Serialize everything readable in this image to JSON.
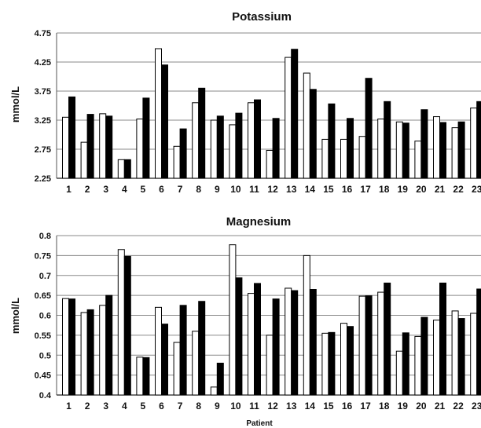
{
  "chart_data": [
    {
      "type": "bar",
      "title": "Potassium",
      "ylabel": "mmol/L",
      "xlabel": "",
      "ylim": [
        2.25,
        4.75
      ],
      "yticks": [
        "2.25",
        "2.75",
        "3.25",
        "3.75",
        "4.25",
        "4.75"
      ],
      "grid": true,
      "categories": [
        "1",
        "2",
        "3",
        "4",
        "5",
        "6",
        "7",
        "8",
        "9",
        "10",
        "11",
        "12",
        "13",
        "14",
        "15",
        "16",
        "17",
        "18",
        "19",
        "20",
        "21",
        "22",
        "23"
      ],
      "series": [
        {
          "fill": "#ffffff",
          "values": [
            3.3,
            2.87,
            3.36,
            2.57,
            3.27,
            4.48,
            2.8,
            3.55,
            3.25,
            3.17,
            3.55,
            2.73,
            4.33,
            4.06,
            2.92,
            2.92,
            2.97,
            3.27,
            3.22,
            2.89,
            3.31,
            3.12,
            3.46
          ]
        },
        {
          "fill": "#000000",
          "values": [
            3.65,
            3.35,
            3.32,
            2.57,
            3.63,
            4.2,
            3.1,
            3.8,
            3.32,
            3.37,
            3.6,
            3.28,
            4.47,
            3.78,
            3.53,
            3.28,
            3.97,
            3.57,
            3.2,
            3.43,
            3.21,
            3.22,
            3.57
          ]
        }
      ]
    },
    {
      "type": "bar",
      "title": "Magnesium",
      "ylabel": "mmol/L",
      "xlabel": "Patient",
      "ylim": [
        0.4,
        0.8
      ],
      "yticks": [
        "0.4",
        "0.45",
        "0.5",
        "0.55",
        "0.6",
        "0.65",
        "0.7",
        "0.75",
        "0.8"
      ],
      "grid": true,
      "categories": [
        "1",
        "2",
        "3",
        "4",
        "5",
        "6",
        "7",
        "8",
        "9",
        "10",
        "11",
        "12",
        "13",
        "14",
        "15",
        "16",
        "17",
        "18",
        "19",
        "20",
        "21",
        "22",
        "23"
      ],
      "series": [
        {
          "fill": "#ffffff",
          "values": [
            0.642,
            0.607,
            0.625,
            0.765,
            0.495,
            0.62,
            0.532,
            0.56,
            0.42,
            0.777,
            0.655,
            0.55,
            0.668,
            0.75,
            0.555,
            0.58,
            0.648,
            0.658,
            0.51,
            0.547,
            0.588,
            0.611,
            0.605
          ]
        },
        {
          "fill": "#000000",
          "values": [
            0.641,
            0.614,
            0.65,
            0.748,
            0.494,
            0.578,
            0.625,
            0.635,
            0.48,
            0.694,
            0.68,
            0.641,
            0.662,
            0.665,
            0.557,
            0.572,
            0.649,
            0.681,
            0.556,
            0.595,
            0.681,
            0.592,
            0.666
          ]
        }
      ]
    }
  ]
}
